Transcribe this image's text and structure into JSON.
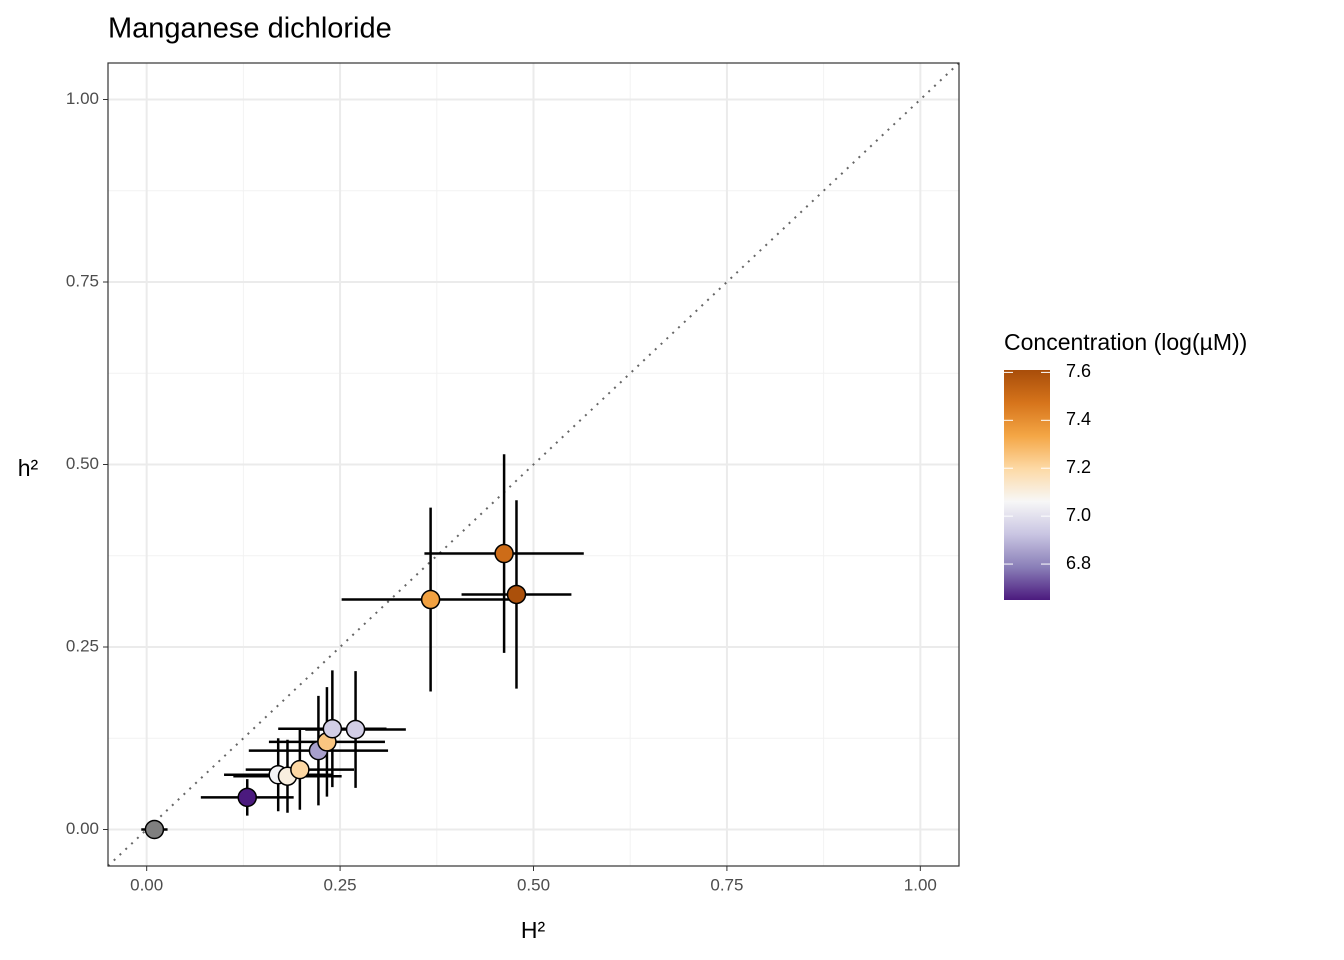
{
  "chart_data": {
    "type": "scatter",
    "title": "Manganese dichloride",
    "xlabel": "H²",
    "ylabel": "h²",
    "xlim": [
      -0.05,
      1.05
    ],
    "ylim": [
      -0.05,
      1.05
    ],
    "xticks": [
      {
        "value": 0,
        "label": "0.00"
      },
      {
        "value": 0.25,
        "label": "0.25"
      },
      {
        "value": 0.5,
        "label": "0.50"
      },
      {
        "value": 0.75,
        "label": "0.75"
      },
      {
        "value": 1,
        "label": "1.00"
      }
    ],
    "yticks": [
      {
        "value": 0,
        "label": "0.00"
      },
      {
        "value": 0.25,
        "label": "0.25"
      },
      {
        "value": 0.5,
        "label": "0.50"
      },
      {
        "value": 0.75,
        "label": "0.75"
      },
      {
        "value": 1,
        "label": "1.00"
      }
    ],
    "grid": true,
    "identity_line": true,
    "series": [
      {
        "x": [
          0.01,
          0.13,
          0.17,
          0.182,
          0.198,
          0.222,
          0.233,
          0.24,
          0.27,
          0.367,
          0.462,
          0.478
        ],
        "y": [
          0.0,
          0.044,
          0.075,
          0.073,
          0.082,
          0.108,
          0.12,
          0.138,
          0.137,
          0.315,
          0.378,
          0.322
        ],
        "xerr": [
          0.017,
          0.06,
          0.07,
          0.07,
          0.07,
          0.09,
          0.075,
          0.07,
          0.065,
          0.115,
          0.103,
          0.071
        ],
        "yerr": [
          0.002,
          0.025,
          0.05,
          0.05,
          0.055,
          0.075,
          0.075,
          0.08,
          0.08,
          0.126,
          0.136,
          0.129
        ],
        "concentration": [
          null,
          6.65,
          7.05,
          7.1,
          7.2,
          6.85,
          7.25,
          6.95,
          6.95,
          7.35,
          7.5,
          7.6
        ]
      }
    ],
    "colorbar": {
      "title": "Concentration (log(µM))",
      "lim": [
        6.65,
        7.61
      ],
      "ticks": [
        6.8,
        {
          "value": 7.0,
          "label": "7.0"
        },
        7.2,
        7.4,
        7.6
      ],
      "colorscale": [
        "#4b1a7e",
        "#8a7fb8",
        "#c9c5e2",
        "#f7f7f7",
        "#fdd9a5",
        "#f4a645",
        "#d6741b",
        "#a84d0a"
      ],
      "na_color": "#7f7f7f"
    }
  }
}
